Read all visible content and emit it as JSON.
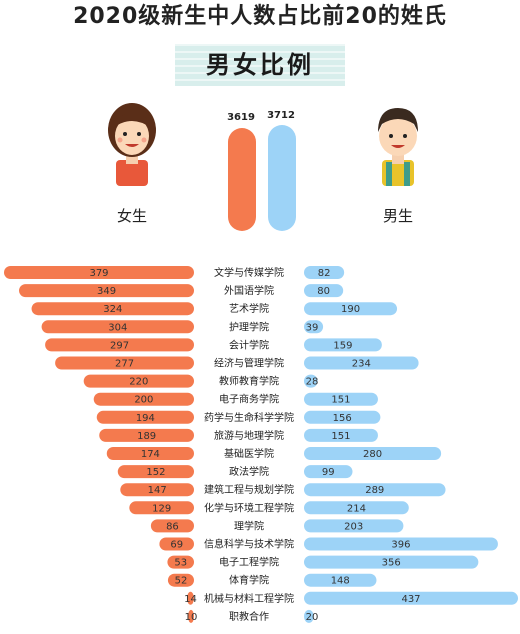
{
  "title": "2020级新生中人数占比前20的姓氏",
  "subtitle": "男女比例",
  "female": {
    "label": "女生",
    "total": 3619,
    "color": "#f47a4e"
  },
  "male": {
    "label": "男生",
    "total": 3712,
    "color": "#9dd3f7"
  },
  "chart_data": {
    "type": "bar",
    "orientation": "diverging-horizontal",
    "categories": [
      "文学与传媒学院",
      "外国语学院",
      "艺术学院",
      "护理学院",
      "会计学院",
      "经济与管理学院",
      "教师教育学院",
      "电子商务学院",
      "药学与生命科学学院",
      "旅游与地理学院",
      "基础医学院",
      "政法学院",
      "建筑工程与规划学院",
      "化学与环境工程学院",
      "理学院",
      "信息科学与技术学院",
      "电子工程学院",
      "体育学院",
      "机械与材料工程学院",
      "职教合作"
    ],
    "series": [
      {
        "name": "女生",
        "values": [
          379,
          349,
          324,
          304,
          297,
          277,
          220,
          200,
          194,
          189,
          174,
          152,
          147,
          129,
          86,
          69,
          53,
          52,
          14,
          10
        ]
      },
      {
        "name": "男生",
        "values": [
          82,
          80,
          190,
          39,
          159,
          234,
          28,
          151,
          156,
          151,
          280,
          99,
          289,
          214,
          203,
          396,
          356,
          148,
          437,
          20
        ]
      }
    ]
  }
}
